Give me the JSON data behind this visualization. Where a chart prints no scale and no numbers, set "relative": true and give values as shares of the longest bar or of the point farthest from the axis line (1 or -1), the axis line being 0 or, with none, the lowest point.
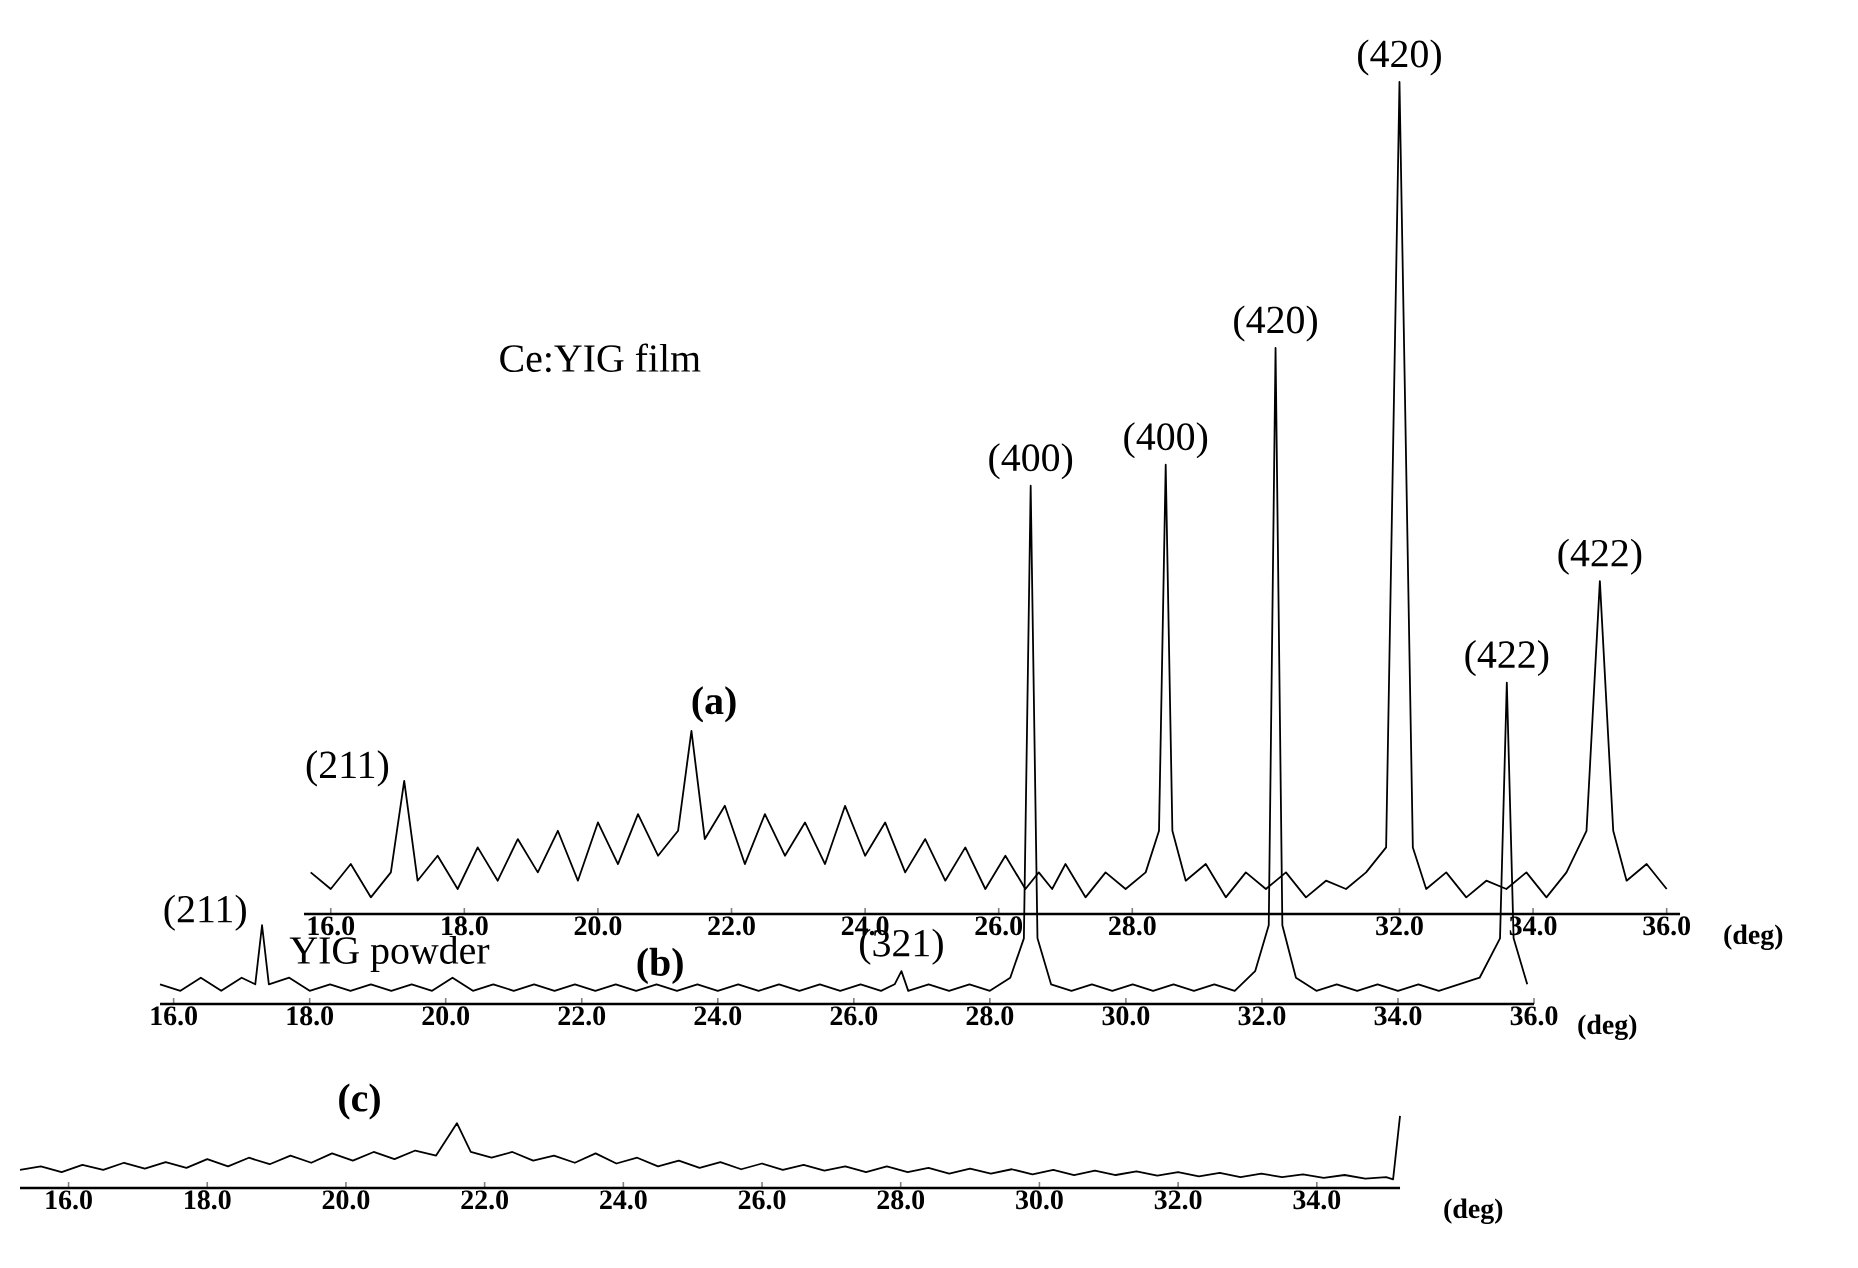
{
  "chart_data": [
    {
      "type": "line",
      "relative": true,
      "title": "Ce:YIG film",
      "xlabel": "(deg)",
      "color": "#000000",
      "xlim": [
        15.6,
        36.2
      ],
      "xticks": [
        {
          "value": 16,
          "label": "16.0"
        },
        {
          "value": 18,
          "label": "18.0"
        },
        {
          "value": 20,
          "label": "20.0"
        },
        {
          "value": 22,
          "label": "22.0"
        },
        {
          "value": 24,
          "label": "24.0"
        },
        {
          "value": 26,
          "label": "26.0"
        },
        {
          "value": 28,
          "label": "28.0"
        },
        {
          "value": 32,
          "label": "32.0"
        },
        {
          "value": 34,
          "label": "34.0"
        },
        {
          "value": 36,
          "label": "36.0"
        }
      ],
      "x": [
        15.7,
        16.0,
        16.3,
        16.6,
        16.9,
        17.1,
        17.3,
        17.6,
        17.9,
        18.2,
        18.5,
        18.8,
        19.1,
        19.4,
        19.7,
        20.0,
        20.3,
        20.6,
        20.9,
        21.2,
        21.4,
        21.6,
        21.9,
        22.2,
        22.5,
        22.8,
        23.1,
        23.4,
        23.7,
        24.0,
        24.3,
        24.6,
        24.9,
        25.2,
        25.5,
        25.8,
        26.1,
        26.4,
        26.6,
        26.8,
        27.0,
        27.3,
        27.6,
        27.9,
        28.2,
        28.4,
        28.5,
        28.6,
        28.8,
        29.1,
        29.4,
        29.7,
        30.0,
        30.3,
        30.6,
        30.9,
        31.2,
        31.5,
        31.8,
        32.0,
        32.2,
        32.4,
        32.7,
        33.0,
        33.3,
        33.6,
        33.9,
        34.2,
        34.5,
        34.8,
        35.0,
        35.2,
        35.4,
        35.7,
        36.0
      ],
      "values": [
        0.05,
        0.03,
        0.06,
        0.02,
        0.05,
        0.16,
        0.04,
        0.07,
        0.03,
        0.08,
        0.04,
        0.09,
        0.05,
        0.1,
        0.04,
        0.11,
        0.06,
        0.12,
        0.07,
        0.1,
        0.22,
        0.09,
        0.13,
        0.06,
        0.12,
        0.07,
        0.11,
        0.06,
        0.13,
        0.07,
        0.11,
        0.05,
        0.09,
        0.04,
        0.08,
        0.03,
        0.07,
        0.03,
        0.05,
        0.03,
        0.06,
        0.02,
        0.05,
        0.03,
        0.05,
        0.1,
        0.54,
        0.1,
        0.04,
        0.06,
        0.02,
        0.05,
        0.03,
        0.05,
        0.02,
        0.04,
        0.03,
        0.05,
        0.08,
        1,
        0.08,
        0.03,
        0.05,
        0.02,
        0.04,
        0.03,
        0.05,
        0.02,
        0.05,
        0.1,
        0.4,
        0.1,
        0.04,
        0.06,
        0.03
      ],
      "annotations": [
        "(a)",
        {
          "text": "(211)",
          "x": 17.1,
          "y": 0.16
        },
        {
          "text": "(400)",
          "x": 28.5,
          "y": 0.54
        },
        {
          "text": "(420)",
          "x": 32.0,
          "y": 1
        },
        {
          "text": "(422)",
          "x": 35.0,
          "y": 0.4
        }
      ]
    },
    {
      "type": "line",
      "relative": true,
      "title": "YIG powder",
      "xlabel": "(deg)",
      "color": "#000000",
      "xlim": [
        15.8,
        36.0
      ],
      "xticks": [
        {
          "value": 16,
          "label": "16.0"
        },
        {
          "value": 18,
          "label": "18.0"
        },
        {
          "value": 20,
          "label": "20.0"
        },
        {
          "value": 22,
          "label": "22.0"
        },
        {
          "value": 24,
          "label": "24.0"
        },
        {
          "value": 26,
          "label": "26.0"
        },
        {
          "value": 28,
          "label": "28.0"
        },
        {
          "value": 30,
          "label": "30.0"
        },
        {
          "value": 32,
          "label": "32.0"
        },
        {
          "value": 34,
          "label": "34.0"
        },
        {
          "value": 36,
          "label": "36.0"
        }
      ],
      "x": [
        15.8,
        16.1,
        16.4,
        16.7,
        17.0,
        17.2,
        17.3,
        17.4,
        17.7,
        18.0,
        18.3,
        18.6,
        18.9,
        19.2,
        19.5,
        19.8,
        20.1,
        20.4,
        20.7,
        21.0,
        21.3,
        21.6,
        21.9,
        22.2,
        22.5,
        22.8,
        23.1,
        23.4,
        23.7,
        24.0,
        24.3,
        24.6,
        24.9,
        25.2,
        25.5,
        25.8,
        26.1,
        26.4,
        26.6,
        26.7,
        26.8,
        27.1,
        27.4,
        27.7,
        28.0,
        28.3,
        28.5,
        28.6,
        28.7,
        28.9,
        29.2,
        29.5,
        29.8,
        30.1,
        30.4,
        30.7,
        31.0,
        31.3,
        31.6,
        31.9,
        32.1,
        32.2,
        32.3,
        32.5,
        32.8,
        33.1,
        33.4,
        33.7,
        34.0,
        34.3,
        34.6,
        34.9,
        35.2,
        35.5,
        35.6,
        35.7,
        35.9
      ],
      "values": [
        0.03,
        0.02,
        0.04,
        0.02,
        0.04,
        0.03,
        0.12,
        0.03,
        0.04,
        0.02,
        0.03,
        0.02,
        0.03,
        0.02,
        0.03,
        0.02,
        0.04,
        0.02,
        0.03,
        0.02,
        0.03,
        0.02,
        0.03,
        0.02,
        0.03,
        0.02,
        0.03,
        0.02,
        0.03,
        0.02,
        0.03,
        0.02,
        0.03,
        0.02,
        0.03,
        0.02,
        0.03,
        0.02,
        0.03,
        0.05,
        0.02,
        0.03,
        0.02,
        0.03,
        0.02,
        0.04,
        0.1,
        0.79,
        0.1,
        0.03,
        0.02,
        0.03,
        0.02,
        0.03,
        0.02,
        0.03,
        0.02,
        0.03,
        0.02,
        0.05,
        0.12,
        1,
        0.12,
        0.04,
        0.02,
        0.03,
        0.02,
        0.03,
        0.02,
        0.03,
        0.02,
        0.03,
        0.04,
        0.1,
        0.49,
        0.1,
        0.03
      ],
      "annotations": [
        "(b)",
        {
          "text": "(211)",
          "x": 17.3,
          "y": 0.12
        },
        {
          "text": "(321)",
          "x": 26.7,
          "y": 0.05
        },
        {
          "text": "(400)",
          "x": 28.6,
          "y": 0.79
        },
        {
          "text": "(420)",
          "x": 32.2,
          "y": 1
        },
        {
          "text": "(422)",
          "x": 35.6,
          "y": 0.49
        }
      ]
    },
    {
      "type": "line",
      "relative": true,
      "xlabel": "(deg)",
      "color": "#000000",
      "xlim": [
        15.3,
        35.2
      ],
      "xticks": [
        {
          "value": 16,
          "label": "16.0"
        },
        {
          "value": 18,
          "label": "18.0"
        },
        {
          "value": 20,
          "label": "20.0"
        },
        {
          "value": 22,
          "label": "22.0"
        },
        {
          "value": 24,
          "label": "24.0"
        },
        {
          "value": 26,
          "label": "26.0"
        },
        {
          "value": 28,
          "label": "28.0"
        },
        {
          "value": 30,
          "label": "30.0"
        },
        {
          "value": 32,
          "label": "32.0"
        },
        {
          "value": 34,
          "label": "34.0"
        }
      ],
      "x": [
        15.3,
        15.6,
        15.9,
        16.2,
        16.5,
        16.8,
        17.1,
        17.4,
        17.7,
        18.0,
        18.3,
        18.6,
        18.9,
        19.2,
        19.5,
        19.8,
        20.1,
        20.4,
        20.7,
        21.0,
        21.3,
        21.6,
        21.8,
        22.1,
        22.4,
        22.7,
        23.0,
        23.3,
        23.6,
        23.9,
        24.2,
        24.5,
        24.8,
        25.1,
        25.4,
        25.7,
        26.0,
        26.3,
        26.6,
        26.9,
        27.2,
        27.5,
        27.8,
        28.1,
        28.4,
        28.7,
        29.0,
        29.3,
        29.6,
        29.9,
        30.2,
        30.5,
        30.8,
        31.1,
        31.4,
        31.7,
        32.0,
        32.3,
        32.6,
        32.9,
        33.2,
        33.5,
        33.8,
        34.1,
        34.4,
        34.7,
        35.0,
        35.1,
        35.2
      ],
      "values": [
        0.25,
        0.3,
        0.22,
        0.32,
        0.25,
        0.35,
        0.27,
        0.36,
        0.28,
        0.4,
        0.3,
        0.42,
        0.33,
        0.45,
        0.35,
        0.48,
        0.38,
        0.5,
        0.4,
        0.52,
        0.45,
        0.9,
        0.5,
        0.42,
        0.5,
        0.38,
        0.45,
        0.35,
        0.48,
        0.34,
        0.42,
        0.3,
        0.38,
        0.28,
        0.36,
        0.26,
        0.34,
        0.25,
        0.32,
        0.24,
        0.3,
        0.22,
        0.3,
        0.22,
        0.28,
        0.2,
        0.27,
        0.2,
        0.26,
        0.19,
        0.25,
        0.18,
        0.24,
        0.18,
        0.23,
        0.17,
        0.22,
        0.16,
        0.21,
        0.15,
        0.2,
        0.15,
        0.19,
        0.14,
        0.18,
        0.13,
        0.15,
        0.12,
        1
      ],
      "annotations": [
        "(c)"
      ]
    }
  ]
}
